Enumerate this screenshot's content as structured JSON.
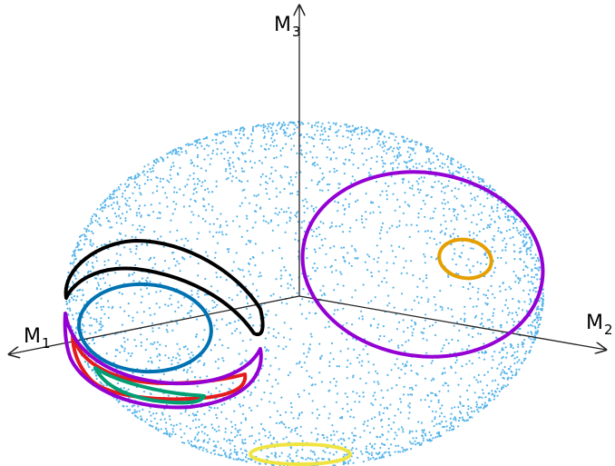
{
  "axes": {
    "m1": {
      "label": "M",
      "subscript": "1"
    },
    "m2": {
      "label": "M",
      "subscript": "2"
    },
    "m3": {
      "label": "M",
      "subscript": "3"
    }
  },
  "colors": {
    "scatter": "#56b4e9",
    "axis": "#222222",
    "purple": "#9400d3",
    "orange": "#e69f00",
    "black": "#000000",
    "blue": "#0072b2",
    "red": "#e41a1c",
    "green": "#009e73",
    "yellow": "#f0e442"
  }
}
